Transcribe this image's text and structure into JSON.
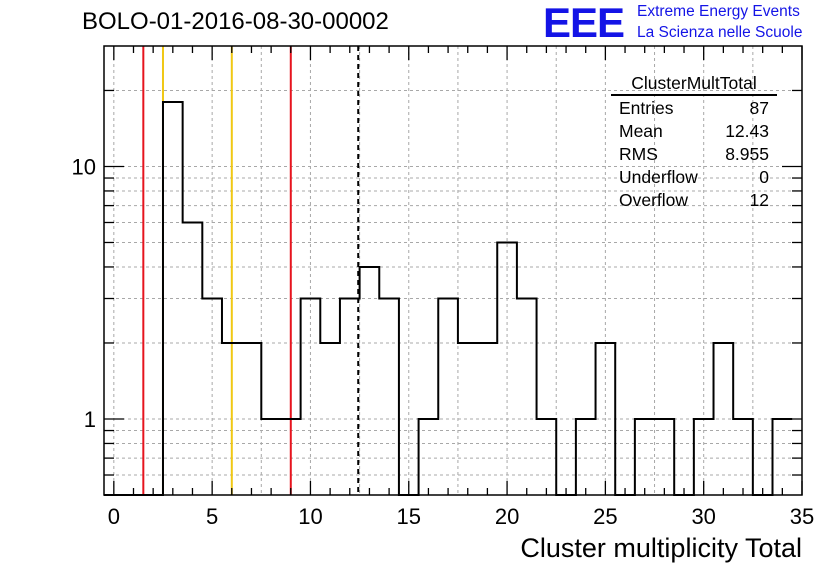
{
  "header": {
    "run_title": "BOLO-01-2016-08-30-00002",
    "logo_text": "EEE",
    "logo_line1": "Extreme Energy Events",
    "logo_line2": "La Scienza nelle Scuole",
    "logo_color": "#1414e6"
  },
  "stats_box": {
    "title": "ClusterMultTotal",
    "rows": [
      {
        "label": "Entries",
        "value": "87"
      },
      {
        "label": "Mean",
        "value": "12.43"
      },
      {
        "label": "RMS",
        "value": "8.955"
      },
      {
        "label": "Underflow",
        "value": "0"
      },
      {
        "label": "Overflow",
        "value": "12"
      }
    ]
  },
  "chart_data": {
    "type": "histogram",
    "title": "",
    "xlabel": "Cluster multiplicity Total",
    "ylabel": "",
    "xlim": [
      -0.5,
      35
    ],
    "ylim": [
      0.5,
      30
    ],
    "log_y": true,
    "grid": true,
    "bin_width": 1,
    "bin_centers": [
      0,
      1,
      2,
      3,
      4,
      5,
      6,
      7,
      8,
      9,
      10,
      11,
      12,
      13,
      14,
      15,
      16,
      17,
      18,
      19,
      20,
      21,
      22,
      23,
      24,
      25,
      26,
      27,
      28,
      29,
      30,
      31,
      32,
      33,
      34
    ],
    "counts": [
      0,
      0,
      0,
      18,
      6,
      3,
      2,
      2,
      1,
      1,
      3,
      2,
      3,
      4,
      3,
      0,
      1,
      3,
      2,
      2,
      5,
      3,
      1,
      0,
      1,
      2,
      0,
      1,
      1,
      0,
      1,
      2,
      1,
      0,
      1
    ],
    "x_ticks": [
      0,
      5,
      10,
      15,
      20,
      25,
      30,
      35
    ],
    "x_tick_labels": [
      "0",
      "5",
      "10",
      "15",
      "20",
      "25",
      "30",
      "35"
    ],
    "y_ticks": [
      1,
      10
    ],
    "y_tick_labels": [
      "1",
      "10"
    ],
    "vertical_lines": [
      {
        "x": 1.5,
        "color": "#e6141e",
        "style": "solid"
      },
      {
        "x": 2.5,
        "color": "#f0c814",
        "style": "solid"
      },
      {
        "x": 6.0,
        "color": "#f0c814",
        "style": "solid"
      },
      {
        "x": 9.0,
        "color": "#e6141e",
        "style": "solid"
      },
      {
        "x": 12.43,
        "color": "#000000",
        "style": "dashed"
      }
    ]
  }
}
